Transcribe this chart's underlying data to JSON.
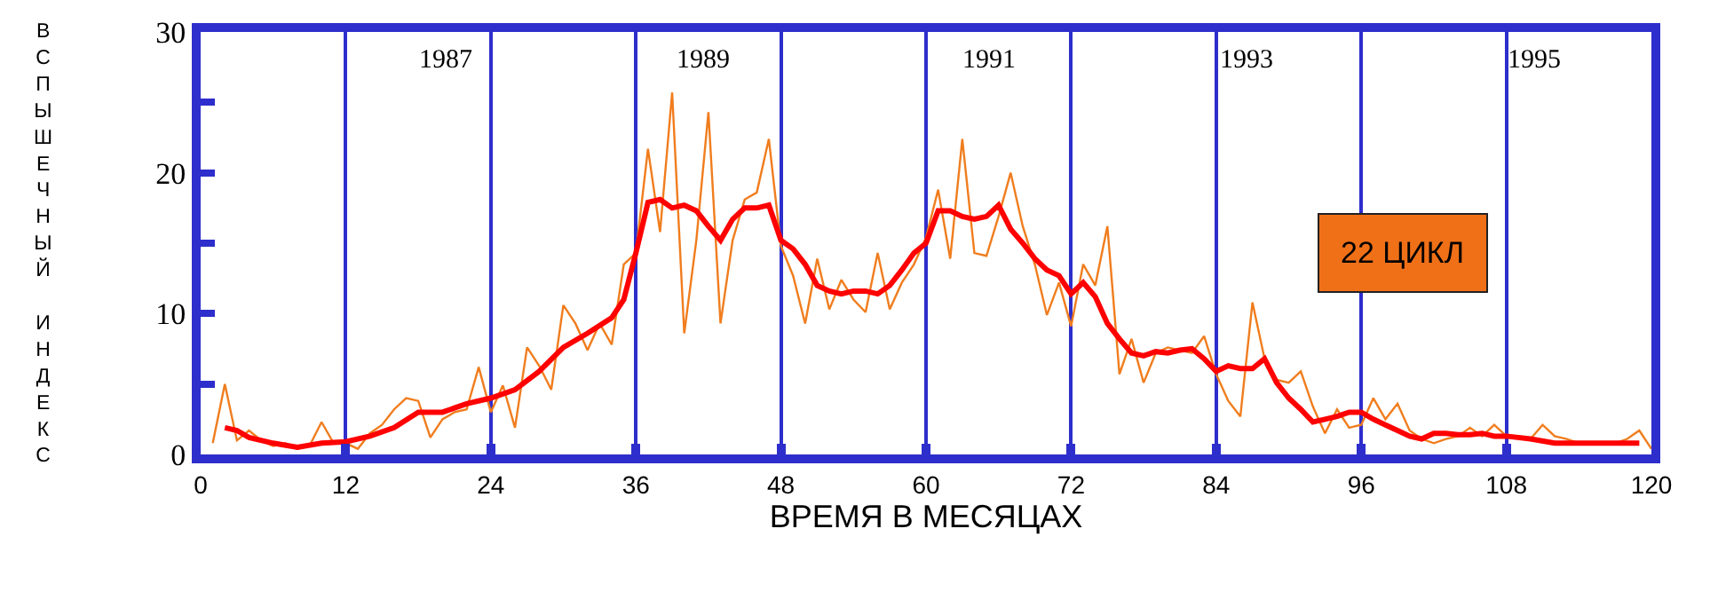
{
  "chart_data": {
    "type": "line",
    "xlabel": "ВРЕМЯ В МЕСЯЦАХ",
    "ylabel": "ВСПЫШЕЧНЫЙ ИНДЕКС",
    "series": [
      {
        "color": "#f07d1e",
        "x": [
          1,
          2,
          3,
          4,
          5,
          6,
          7,
          8,
          9,
          10,
          11,
          12,
          13,
          14,
          15,
          16,
          17,
          18,
          19,
          20,
          21,
          22,
          23,
          24,
          25,
          26,
          27,
          28,
          29,
          30,
          31,
          32,
          33,
          34,
          35,
          36,
          37,
          38,
          39,
          40,
          41,
          42,
          43,
          44,
          45,
          46,
          47,
          48,
          49,
          50,
          51,
          52,
          53,
          54,
          55,
          56,
          57,
          58,
          59,
          60,
          61,
          62,
          63,
          64,
          65,
          66,
          67,
          68,
          69,
          70,
          71,
          72,
          73,
          74,
          75,
          76,
          77,
          78,
          79,
          80,
          81,
          82,
          83,
          84,
          85,
          86,
          87,
          88,
          89,
          90,
          91,
          92,
          93,
          94,
          95,
          96,
          97,
          98,
          99,
          100,
          101,
          102,
          103,
          104,
          105,
          106,
          107,
          108,
          109,
          110,
          111,
          112,
          113,
          114,
          115,
          116,
          117,
          118,
          119,
          120
        ],
        "values": [
          0.8,
          5.0,
          1.0,
          1.7,
          1.0,
          0.6,
          0.8,
          0.4,
          0.6,
          2.3,
          0.8,
          0.8,
          0.4,
          1.5,
          2.1,
          3.2,
          4.0,
          3.8,
          1.2,
          2.5,
          3.0,
          3.2,
          6.2,
          3.0,
          4.9,
          1.9,
          7.6,
          6.3,
          4.6,
          10.6,
          9.3,
          7.4,
          9.3,
          7.8,
          13.5,
          14.3,
          21.7,
          15.8,
          25.7,
          8.6,
          15.2,
          24.3,
          9.3,
          15.2,
          18.1,
          18.6,
          22.4,
          14.8,
          12.7,
          9.3,
          13.9,
          10.3,
          12.4,
          11.0,
          10.1,
          14.3,
          10.3,
          12.2,
          13.5,
          15.4,
          18.8,
          13.9,
          22.4,
          14.3,
          14.1,
          16.9,
          20.0,
          16.2,
          13.5,
          9.9,
          12.2,
          9.1,
          13.5,
          12.0,
          16.2,
          5.7,
          8.2,
          5.1,
          7.2,
          7.6,
          7.4,
          7.2,
          8.4,
          5.7,
          3.8,
          2.7,
          10.8,
          6.8,
          5.3,
          5.1,
          5.9,
          3.4,
          1.5,
          3.2,
          1.9,
          2.1,
          4.0,
          2.5,
          3.6,
          1.7,
          1.1,
          0.8,
          1.1,
          1.3,
          1.9,
          1.3,
          2.1,
          1.3,
          1.3,
          1.1,
          2.1,
          1.3,
          1.1,
          0.8,
          0.8,
          0.8,
          0.8,
          1.1,
          1.7,
          0.4
        ]
      },
      {
        "color": "#ff0000",
        "x": [
          2,
          3,
          4,
          6,
          8,
          10,
          12,
          14,
          16,
          18,
          20,
          22,
          24,
          26,
          28,
          30,
          32,
          34,
          35,
          36,
          37,
          38,
          39,
          40,
          41,
          42,
          43,
          44,
          45,
          46,
          47,
          48,
          49,
          50,
          51,
          52,
          53,
          54,
          55,
          56,
          57,
          58,
          59,
          60,
          61,
          62,
          63,
          64,
          65,
          66,
          67,
          68,
          69,
          70,
          71,
          72,
          73,
          74,
          75,
          76,
          77,
          78,
          79,
          80,
          81,
          82,
          83,
          84,
          85,
          86,
          87,
          88,
          89,
          90,
          91,
          92,
          93,
          94,
          95,
          96,
          97,
          98,
          99,
          100,
          101,
          102,
          103,
          104,
          105,
          106,
          107,
          108,
          110,
          112,
          114,
          116,
          118,
          119
        ],
        "values": [
          1.9,
          1.7,
          1.2,
          0.8,
          0.5,
          0.8,
          0.9,
          1.3,
          1.9,
          3.0,
          3.0,
          3.6,
          4.0,
          4.6,
          5.9,
          7.6,
          8.6,
          9.7,
          11.0,
          14.3,
          17.9,
          18.1,
          17.5,
          17.7,
          17.3,
          16.2,
          15.2,
          16.7,
          17.5,
          17.5,
          17.7,
          15.2,
          14.6,
          13.5,
          12.0,
          11.6,
          11.4,
          11.6,
          11.6,
          11.4,
          12.0,
          13.1,
          14.3,
          15.0,
          17.3,
          17.3,
          16.9,
          16.7,
          16.9,
          17.7,
          16.0,
          15.0,
          13.9,
          13.1,
          12.7,
          11.4,
          12.2,
          11.2,
          9.3,
          8.2,
          7.2,
          7.0,
          7.3,
          7.2,
          7.4,
          7.5,
          6.8,
          5.9,
          6.3,
          6.1,
          6.1,
          6.8,
          5.1,
          4.0,
          3.2,
          2.3,
          2.5,
          2.7,
          3.0,
          3.0,
          2.5,
          2.1,
          1.7,
          1.3,
          1.1,
          1.5,
          1.5,
          1.4,
          1.4,
          1.5,
          1.3,
          1.3,
          1.1,
          0.8,
          0.8,
          0.8,
          0.8,
          0.8
        ]
      }
    ],
    "xlim": [
      0,
      120
    ],
    "xticks": [
      0,
      12,
      24,
      36,
      48,
      60,
      72,
      84,
      96,
      108,
      120
    ],
    "ylim": [
      0,
      30
    ],
    "yticks": [
      0,
      {
        "value": 5,
        "label": null
      },
      10,
      {
        "value": 15,
        "label": null
      },
      20,
      {
        "value": 25,
        "label": null
      },
      30
    ],
    "grid": "x",
    "annotations": [
      "1987",
      "1989",
      "1991",
      "1993",
      "1995",
      "22 ЦИКЛ"
    ]
  }
}
